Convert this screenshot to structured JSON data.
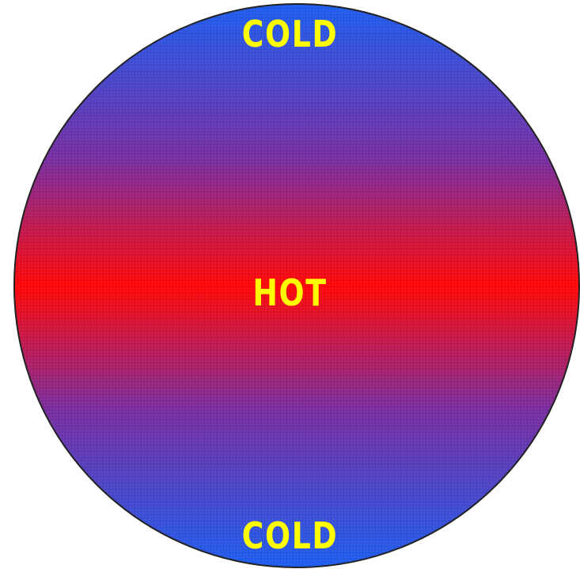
{
  "labels": {
    "top": "COLD",
    "center": "HOT",
    "bottom": "COLD"
  },
  "colors": {
    "cold": "#1f5ff0",
    "mid": "#7a2fa0",
    "hot": "#ff0a0a",
    "text": "#ffff00",
    "outline": "#222222"
  }
}
